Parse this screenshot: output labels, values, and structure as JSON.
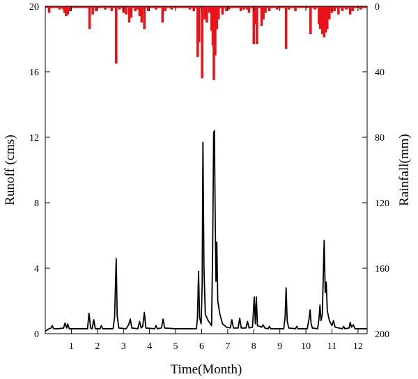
{
  "chart_data": {
    "type": "line",
    "title": "",
    "xlabel": "Time(Month)",
    "ylabel_left": "Runoff (cms)",
    "ylabel_right": "Rainfall(mm)",
    "x_ticks": [
      1,
      2,
      3,
      4,
      5,
      6,
      7,
      8,
      9,
      10,
      11,
      12
    ],
    "xlim": [
      0,
      12.35
    ],
    "y_left_ticks": [
      0,
      4,
      8,
      12,
      16,
      20
    ],
    "y_left_lim": [
      0,
      20
    ],
    "y_right_ticks": [
      0,
      40,
      80,
      120,
      160,
      200
    ],
    "y_right_lim": [
      0,
      200
    ],
    "y_right_inverted": true,
    "grid": false,
    "legend": "none",
    "colors": {
      "runoff": "#000000",
      "rainfall": "#e8141a"
    },
    "series": [
      {
        "axis": "left",
        "style": "line",
        "values_xy": [
          [
            0.0,
            0.15
          ],
          [
            0.08,
            0.25
          ],
          [
            0.15,
            0.3
          ],
          [
            0.22,
            0.35
          ],
          [
            0.27,
            0.5
          ],
          [
            0.32,
            0.3
          ],
          [
            0.5,
            0.3
          ],
          [
            0.7,
            0.35
          ],
          [
            0.76,
            0.65
          ],
          [
            0.82,
            0.35
          ],
          [
            0.86,
            0.6
          ],
          [
            0.92,
            0.3
          ],
          [
            1.0,
            0.3
          ],
          [
            1.4,
            0.3
          ],
          [
            1.62,
            0.3
          ],
          [
            1.68,
            1.25
          ],
          [
            1.74,
            0.35
          ],
          [
            1.8,
            0.3
          ],
          [
            1.86,
            0.85
          ],
          [
            1.92,
            0.3
          ],
          [
            2.1,
            0.3
          ],
          [
            2.15,
            0.5
          ],
          [
            2.2,
            0.3
          ],
          [
            2.6,
            0.3
          ],
          [
            2.66,
            1.0
          ],
          [
            2.72,
            4.6
          ],
          [
            2.76,
            1.1
          ],
          [
            2.82,
            0.35
          ],
          [
            3.1,
            0.3
          ],
          [
            3.2,
            0.55
          ],
          [
            3.26,
            0.9
          ],
          [
            3.32,
            0.35
          ],
          [
            3.55,
            0.3
          ],
          [
            3.62,
            0.75
          ],
          [
            3.68,
            0.35
          ],
          [
            3.74,
            0.45
          ],
          [
            3.8,
            1.3
          ],
          [
            3.86,
            0.35
          ],
          [
            4.2,
            0.3
          ],
          [
            4.25,
            0.5
          ],
          [
            4.3,
            0.3
          ],
          [
            4.46,
            0.35
          ],
          [
            4.52,
            0.9
          ],
          [
            4.58,
            0.35
          ],
          [
            5.0,
            0.3
          ],
          [
            5.8,
            0.3
          ],
          [
            5.84,
            1.0
          ],
          [
            5.88,
            3.8
          ],
          [
            5.92,
            1.0
          ],
          [
            5.98,
            0.6
          ],
          [
            6.02,
            3.0
          ],
          [
            6.05,
            11.7
          ],
          [
            6.09,
            4.0
          ],
          [
            6.14,
            1.2
          ],
          [
            6.25,
            0.8
          ],
          [
            6.38,
            0.5
          ],
          [
            6.42,
            5.0
          ],
          [
            6.46,
            12.3
          ],
          [
            6.49,
            12.4
          ],
          [
            6.52,
            7.0
          ],
          [
            6.55,
            3.2
          ],
          [
            6.58,
            5.6
          ],
          [
            6.62,
            2.0
          ],
          [
            6.7,
            1.2
          ],
          [
            6.8,
            0.6
          ],
          [
            6.95,
            0.4
          ],
          [
            7.1,
            0.35
          ],
          [
            7.16,
            0.85
          ],
          [
            7.22,
            0.35
          ],
          [
            7.4,
            0.35
          ],
          [
            7.46,
            0.95
          ],
          [
            7.52,
            0.35
          ],
          [
            7.7,
            0.35
          ],
          [
            7.76,
            0.75
          ],
          [
            7.82,
            0.35
          ],
          [
            7.95,
            0.4
          ],
          [
            8.02,
            2.25
          ],
          [
            8.06,
            0.6
          ],
          [
            8.1,
            2.25
          ],
          [
            8.14,
            0.5
          ],
          [
            8.3,
            0.4
          ],
          [
            8.36,
            0.55
          ],
          [
            8.42,
            0.35
          ],
          [
            8.55,
            0.3
          ],
          [
            8.6,
            0.45
          ],
          [
            8.65,
            0.3
          ],
          [
            9.15,
            0.3
          ],
          [
            9.2,
            1.0
          ],
          [
            9.24,
            2.8
          ],
          [
            9.28,
            0.8
          ],
          [
            9.34,
            0.35
          ],
          [
            9.6,
            0.3
          ],
          [
            9.65,
            0.45
          ],
          [
            9.7,
            0.3
          ],
          [
            10.05,
            0.3
          ],
          [
            10.12,
            0.9
          ],
          [
            10.16,
            1.45
          ],
          [
            10.2,
            0.6
          ],
          [
            10.25,
            0.35
          ],
          [
            10.45,
            0.3
          ],
          [
            10.5,
            0.9
          ],
          [
            10.54,
            1.75
          ],
          [
            10.58,
            0.8
          ],
          [
            10.63,
            1.2
          ],
          [
            10.7,
            5.7
          ],
          [
            10.74,
            2.5
          ],
          [
            10.78,
            3.15
          ],
          [
            10.82,
            1.4
          ],
          [
            10.9,
            0.8
          ],
          [
            11.0,
            0.5
          ],
          [
            11.06,
            0.8
          ],
          [
            11.12,
            0.4
          ],
          [
            11.4,
            0.3
          ],
          [
            11.45,
            0.45
          ],
          [
            11.5,
            0.3
          ],
          [
            11.66,
            0.35
          ],
          [
            11.7,
            0.7
          ],
          [
            11.75,
            0.4
          ],
          [
            11.82,
            0.55
          ],
          [
            11.88,
            0.3
          ],
          [
            12.35,
            0.3
          ]
        ]
      },
      {
        "axis": "right",
        "style": "bar",
        "values_xy": [
          [
            0.15,
            4
          ],
          [
            0.4,
            1
          ],
          [
            0.55,
            2
          ],
          [
            0.7,
            2
          ],
          [
            0.74,
            4
          ],
          [
            0.8,
            6
          ],
          [
            0.86,
            5
          ],
          [
            0.95,
            3
          ],
          [
            1.05,
            1
          ],
          [
            1.3,
            1
          ],
          [
            1.55,
            1
          ],
          [
            1.7,
            14
          ],
          [
            1.82,
            5
          ],
          [
            1.95,
            3
          ],
          [
            2.05,
            1
          ],
          [
            2.3,
            2
          ],
          [
            2.55,
            3
          ],
          [
            2.72,
            35
          ],
          [
            2.85,
            2
          ],
          [
            3.0,
            4
          ],
          [
            3.1,
            5
          ],
          [
            3.22,
            10
          ],
          [
            3.3,
            7
          ],
          [
            3.45,
            3
          ],
          [
            3.55,
            2
          ],
          [
            3.62,
            6
          ],
          [
            3.7,
            10
          ],
          [
            3.8,
            14
          ],
          [
            3.95,
            3
          ],
          [
            4.05,
            1
          ],
          [
            4.25,
            2
          ],
          [
            4.5,
            10
          ],
          [
            4.6,
            3
          ],
          [
            4.85,
            2
          ],
          [
            5.1,
            1
          ],
          [
            5.25,
            1
          ],
          [
            5.45,
            1
          ],
          [
            5.55,
            2
          ],
          [
            5.7,
            3
          ],
          [
            5.85,
            31
          ],
          [
            5.9,
            22
          ],
          [
            6.02,
            44
          ],
          [
            6.12,
            8
          ],
          [
            6.2,
            10
          ],
          [
            6.3,
            4
          ],
          [
            6.38,
            15
          ],
          [
            6.43,
            24
          ],
          [
            6.47,
            45
          ],
          [
            6.52,
            30
          ],
          [
            6.58,
            14
          ],
          [
            6.65,
            8
          ],
          [
            6.8,
            5
          ],
          [
            6.95,
            3
          ],
          [
            7.05,
            2
          ],
          [
            7.3,
            1
          ],
          [
            7.5,
            3
          ],
          [
            7.62,
            2
          ],
          [
            7.75,
            2
          ],
          [
            7.82,
            4
          ],
          [
            8.0,
            23
          ],
          [
            8.07,
            11
          ],
          [
            8.12,
            23
          ],
          [
            8.3,
            12
          ],
          [
            8.37,
            8
          ],
          [
            8.45,
            4
          ],
          [
            8.6,
            3
          ],
          [
            8.9,
            2
          ],
          [
            9.1,
            1
          ],
          [
            9.24,
            26
          ],
          [
            9.35,
            2
          ],
          [
            9.6,
            3
          ],
          [
            9.8,
            1
          ],
          [
            10.0,
            1
          ],
          [
            10.18,
            17
          ],
          [
            10.35,
            2
          ],
          [
            10.5,
            11
          ],
          [
            10.55,
            14
          ],
          [
            10.63,
            17
          ],
          [
            10.7,
            19
          ],
          [
            10.76,
            16
          ],
          [
            10.82,
            14
          ],
          [
            10.9,
            8
          ],
          [
            11.0,
            4
          ],
          [
            11.1,
            3
          ],
          [
            11.25,
            5
          ],
          [
            11.4,
            3
          ],
          [
            11.55,
            2
          ],
          [
            11.7,
            5
          ],
          [
            11.8,
            3
          ],
          [
            11.9,
            1
          ],
          [
            12.1,
            2
          ]
        ]
      }
    ]
  }
}
